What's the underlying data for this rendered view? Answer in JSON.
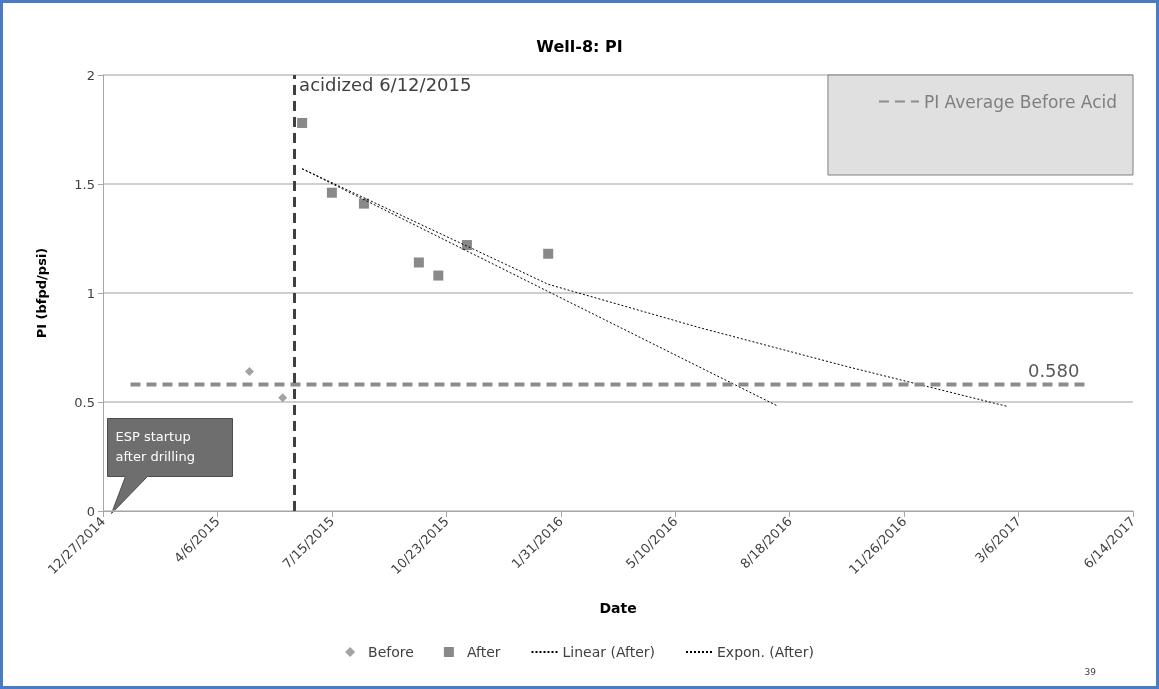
{
  "chart_data": {
    "type": "scatter",
    "title": "Well-8: PI",
    "xlabel": "Date",
    "ylabel": "PI (bfpd/psi)",
    "xlim": [
      "2014-12-27",
      "2017-06-14"
    ],
    "xticks": [
      {
        "value": "2014-12-27",
        "label": "12/27/2014"
      },
      {
        "value": "2015-04-06",
        "label": "4/6/2015"
      },
      {
        "value": "2015-07-15",
        "label": "7/15/2015"
      },
      {
        "value": "2015-10-23",
        "label": "10/23/2015"
      },
      {
        "value": "2016-01-31",
        "label": "1/31/2016"
      },
      {
        "value": "2016-05-10",
        "label": "5/10/2016"
      },
      {
        "value": "2016-08-18",
        "label": "8/18/2016"
      },
      {
        "value": "2016-11-26",
        "label": "11/26/2016"
      },
      {
        "value": "2017-03-06",
        "label": "3/6/2017"
      },
      {
        "value": "2017-06-14",
        "label": "6/14/2017"
      }
    ],
    "ylim": [
      0,
      2
    ],
    "yticks": [
      0,
      0.5,
      1,
      1.5,
      2
    ],
    "grid": "y",
    "legend": "bottom",
    "series": [
      {
        "name": "Before",
        "marker": "diamond",
        "color": "#8c8c8c",
        "x": [
          "2015-05-04",
          "2015-06-02"
        ],
        "values": [
          0.64,
          0.52
        ]
      },
      {
        "name": "After",
        "marker": "square",
        "color": "#6b6b6b",
        "x": [
          "2015-06-19",
          "2015-07-15",
          "2015-08-12",
          "2015-09-29",
          "2015-10-16",
          "2015-11-10",
          "2016-01-20"
        ],
        "values": [
          1.78,
          1.46,
          1.41,
          1.14,
          1.08,
          1.22,
          1.18
        ]
      },
      {
        "name": "Linear (After)",
        "type": "line",
        "marker": "none",
        "line_style": "dotted",
        "color": "#000000",
        "x": [
          "2015-06-19",
          "2016-08-08"
        ],
        "values": [
          1.57,
          0.48
        ]
      },
      {
        "name": "Expon. (After)",
        "type": "line",
        "marker": "none",
        "line_style": "dotted",
        "color": "#000000",
        "x": [
          "2015-06-19",
          "2016-01-20",
          "2016-06-01",
          "2016-10-09",
          "2017-02-24"
        ],
        "values": [
          1.57,
          1.04,
          0.84,
          0.66,
          0.48
        ]
      },
      {
        "name": "PI Average Before Acid",
        "type": "line",
        "marker": "none",
        "line_style": "dashed",
        "color": "#8c8c8c",
        "x": [
          "2015-01-20",
          "2017-05-03"
        ],
        "values": [
          0.58,
          0.58
        ],
        "value_labels": [
          null,
          "0.580"
        ]
      }
    ],
    "ref_lines": [
      {
        "axis": "x",
        "value": "2015-06-12",
        "label": "acidized 6/12/2015",
        "line_style": "dashed",
        "color": "#404040"
      }
    ],
    "annotations": [
      "ESP startup after drilling",
      "39"
    ]
  }
}
